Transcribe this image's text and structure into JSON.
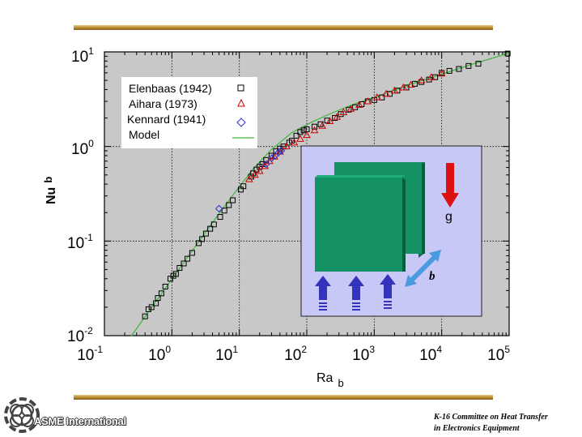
{
  "colors": {
    "plot_bg": "#c8c8c8",
    "model_line": "#3cb43c",
    "elenbaas_marker": "#000000",
    "aihara_marker": "#cc0000",
    "kennard_marker": "#3333cc",
    "inset_bg": "#c8c8f6",
    "plate_face": "#149264",
    "arrow_up": "#3333bb",
    "arrow_g": "#dd1111",
    "arrow_b": "#4a9ae0",
    "rule_gold": "#b8862f"
  },
  "chart_data": {
    "type": "scatter",
    "xscale": "log",
    "yscale": "log",
    "xlim": [
      0.1,
      100000
    ],
    "ylim": [
      0.01,
      10
    ],
    "grid": true,
    "legend_position": "top-left",
    "xlabel": {
      "main": "Ra",
      "sub": "b"
    },
    "ylabel": {
      "main": "Nu",
      "sub": "b"
    },
    "x_ticks": [
      {
        "base": "10",
        "exp": "-1",
        "value": 0.1
      },
      {
        "base": "10",
        "exp": "0",
        "value": 1
      },
      {
        "base": "10",
        "exp": "1",
        "value": 10
      },
      {
        "base": "10",
        "exp": "2",
        "value": 100
      },
      {
        "base": "10",
        "exp": "3",
        "value": 1000
      },
      {
        "base": "10",
        "exp": "4",
        "value": 10000
      },
      {
        "base": "10",
        "exp": "5",
        "value": 100000
      }
    ],
    "y_ticks": [
      {
        "base": "10",
        "exp": "-2",
        "value": 0.01
      },
      {
        "base": "10",
        "exp": "-1",
        "value": 0.1
      },
      {
        "base": "10",
        "exp": "0",
        "value": 1
      },
      {
        "base": "10",
        "exp": "1",
        "value": 10
      }
    ],
    "series": [
      {
        "name": "Elenbaas (1942)",
        "marker": "square",
        "points": [
          [
            0.4,
            0.016
          ],
          [
            0.45,
            0.019
          ],
          [
            0.5,
            0.02
          ],
          [
            0.58,
            0.022
          ],
          [
            0.62,
            0.025
          ],
          [
            0.7,
            0.028
          ],
          [
            0.8,
            0.033
          ],
          [
            0.95,
            0.04
          ],
          [
            1.05,
            0.043
          ],
          [
            1.15,
            0.045
          ],
          [
            1.3,
            0.052
          ],
          [
            1.5,
            0.058
          ],
          [
            1.7,
            0.065
          ],
          [
            2.0,
            0.075
          ],
          [
            2.5,
            0.095
          ],
          [
            2.8,
            0.105
          ],
          [
            3.2,
            0.12
          ],
          [
            3.7,
            0.135
          ],
          [
            4.2,
            0.15
          ],
          [
            5.2,
            0.18
          ],
          [
            6.0,
            0.21
          ],
          [
            7.0,
            0.24
          ],
          [
            8.0,
            0.27
          ],
          [
            10.5,
            0.35
          ],
          [
            11.5,
            0.38
          ],
          [
            15,
            0.48
          ],
          [
            16,
            0.52
          ],
          [
            18,
            0.57
          ],
          [
            20,
            0.61
          ],
          [
            22,
            0.65
          ],
          [
            25,
            0.72
          ],
          [
            30,
            0.8
          ],
          [
            35,
            0.89
          ],
          [
            40,
            0.95
          ],
          [
            45,
            1.0
          ],
          [
            55,
            1.1
          ],
          [
            60,
            1.15
          ],
          [
            70,
            1.3
          ],
          [
            80,
            1.42
          ],
          [
            90,
            1.48
          ],
          [
            100,
            1.52
          ],
          [
            130,
            1.62
          ],
          [
            160,
            1.72
          ],
          [
            200,
            1.88
          ],
          [
            260,
            2.0
          ],
          [
            320,
            2.2
          ],
          [
            420,
            2.45
          ],
          [
            520,
            2.6
          ],
          [
            650,
            2.8
          ],
          [
            800,
            3.0
          ],
          [
            1000,
            3.1
          ],
          [
            1300,
            3.3
          ],
          [
            1700,
            3.6
          ],
          [
            2200,
            3.9
          ],
          [
            3000,
            4.2
          ],
          [
            4000,
            4.6
          ],
          [
            5000,
            4.8
          ],
          [
            6500,
            5.1
          ],
          [
            8000,
            5.4
          ],
          [
            10000,
            6.0
          ],
          [
            13000,
            6.3
          ],
          [
            18000,
            6.6
          ],
          [
            25000,
            7.1
          ],
          [
            35000,
            7.5
          ],
          [
            95000,
            9.6
          ]
        ]
      },
      {
        "name": "Aihara (1973)",
        "marker": "triangle",
        "points": [
          [
            14,
            0.45
          ],
          [
            17,
            0.5
          ],
          [
            20,
            0.55
          ],
          [
            24,
            0.62
          ],
          [
            28,
            0.7
          ],
          [
            33,
            0.78
          ],
          [
            40,
            0.88
          ],
          [
            50,
            1.0
          ],
          [
            65,
            1.1
          ],
          [
            80,
            1.2
          ],
          [
            100,
            1.32
          ],
          [
            130,
            1.48
          ],
          [
            170,
            1.65
          ],
          [
            220,
            1.85
          ],
          [
            280,
            2.05
          ],
          [
            350,
            2.3
          ],
          [
            450,
            2.5
          ],
          [
            600,
            2.75
          ],
          [
            800,
            3.0
          ],
          [
            1100,
            3.3
          ],
          [
            1500,
            3.6
          ],
          [
            2000,
            3.9
          ],
          [
            2700,
            4.2
          ],
          [
            3500,
            4.5
          ],
          [
            5000,
            5.0
          ],
          [
            7000,
            5.4
          ],
          [
            10000,
            5.9
          ]
        ]
      },
      {
        "name": "Kennard (1941)",
        "marker": "diamond",
        "points": [
          [
            5,
            0.22
          ],
          [
            25,
            0.65
          ],
          [
            30,
            0.75
          ],
          [
            34,
            0.8
          ],
          [
            38,
            0.86
          ],
          [
            42,
            0.9
          ]
        ]
      },
      {
        "name": "Model",
        "marker": "line",
        "points": [
          [
            0.25,
            0.0099
          ],
          [
            0.5,
            0.0198
          ],
          [
            1,
            0.0396
          ],
          [
            2,
            0.079
          ],
          [
            4,
            0.157
          ],
          [
            8,
            0.305
          ],
          [
            16,
            0.58
          ],
          [
            30,
            0.93
          ],
          [
            60,
            1.4
          ],
          [
            120,
            1.82
          ],
          [
            250,
            2.3
          ],
          [
            500,
            2.8
          ],
          [
            1000,
            3.3
          ],
          [
            2000,
            3.95
          ],
          [
            4000,
            4.7
          ],
          [
            10000,
            5.8
          ],
          [
            30000,
            7.5
          ],
          [
            100000,
            9.7
          ]
        ]
      }
    ],
    "inset_labels": {
      "gravity": "g",
      "spacing": "b"
    }
  },
  "footer": {
    "org_name": "ASME International",
    "committee_line1": "K-16 Committee on Heat Transfer",
    "committee_line2": "in Electronics Equipment"
  }
}
